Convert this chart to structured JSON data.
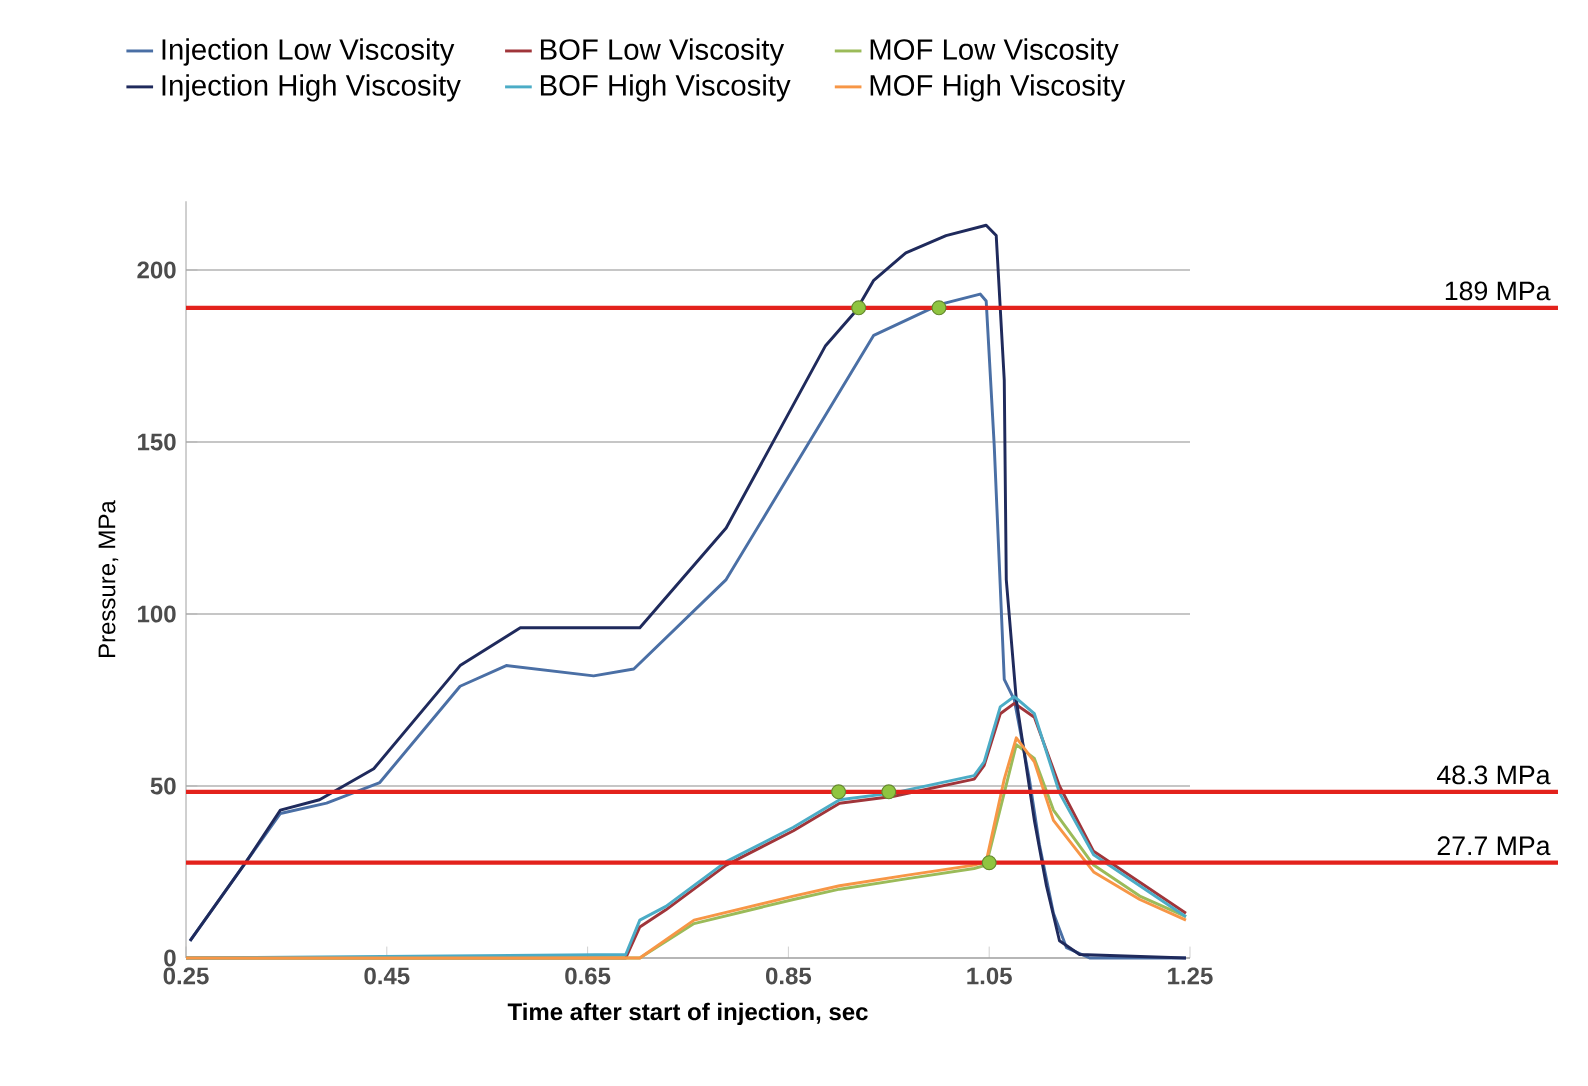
{
  "chart_data": {
    "type": "line",
    "xlabel": "Time after start of injection, sec",
    "ylabel": "Pressure, MPa",
    "xlim": [
      0.25,
      1.25
    ],
    "ylim": [
      0,
      220
    ],
    "xticks": [
      0.25,
      0.45,
      0.65,
      0.85,
      1.05,
      1.25
    ],
    "yticks": [
      0,
      50,
      100,
      150,
      200
    ],
    "grid": "y",
    "legend": "top",
    "series": [
      {
        "name": "Injection Low Viscosity",
        "color": "#4a6fa5",
        "x": [
          0.254,
          0.31,
          0.344,
          0.39,
          0.443,
          0.523,
          0.569,
          0.656,
          0.696,
          0.788,
          0.875,
          0.935,
          1.001,
          1.041,
          1.047,
          1.055,
          1.065,
          1.075,
          1.09,
          1.1,
          1.114,
          1.127,
          1.15,
          1.246
        ],
        "values": [
          5,
          28,
          42,
          45,
          51,
          79,
          85,
          82,
          84,
          110,
          152,
          181,
          190,
          193,
          191,
          149,
          81,
          75,
          52,
          33,
          13,
          3,
          0,
          0
        ]
      },
      {
        "name": "BOF Low Viscosity",
        "color": "#a0353a",
        "x": [
          0.25,
          0.688,
          0.702,
          0.728,
          0.788,
          0.855,
          0.901,
          0.955,
          1.035,
          1.045,
          1.061,
          1.075,
          1.095,
          1.12,
          1.154,
          1.2,
          1.246
        ],
        "values": [
          0,
          0,
          9,
          14,
          27,
          37,
          45,
          47,
          52,
          56,
          71,
          74,
          70,
          50,
          31,
          22,
          13
        ]
      },
      {
        "name": "MOF Low Viscosity",
        "color": "#9bbb59",
        "x": [
          0.25,
          0.702,
          0.756,
          0.855,
          0.901,
          0.967,
          1.035,
          1.047,
          1.065,
          1.077,
          1.095,
          1.114,
          1.154,
          1.2,
          1.246
        ],
        "values": [
          0,
          0,
          10,
          17,
          20,
          23,
          26,
          27,
          48,
          62,
          58,
          43,
          27,
          18,
          12
        ]
      },
      {
        "name": "Injection High Viscosity",
        "color": "#1f2a5c",
        "x": [
          0.254,
          0.31,
          0.344,
          0.383,
          0.437,
          0.523,
          0.583,
          0.702,
          0.788,
          0.887,
          0.917,
          0.935,
          0.967,
          1.007,
          1.047,
          1.057,
          1.065,
          1.067,
          1.077,
          1.095,
          1.107,
          1.12,
          1.14,
          1.246
        ],
        "values": [
          5,
          28,
          43,
          46,
          55,
          85,
          96,
          96,
          125,
          178,
          188,
          197,
          205,
          210,
          213,
          210,
          168,
          110,
          75,
          40,
          21,
          5,
          1,
          0
        ]
      },
      {
        "name": "BOF High Viscosity",
        "color": "#4bacc6",
        "x": [
          0.25,
          0.688,
          0.702,
          0.728,
          0.788,
          0.855,
          0.901,
          0.955,
          1.035,
          1.045,
          1.061,
          1.075,
          1.095,
          1.12,
          1.154,
          1.2,
          1.246
        ],
        "values": [
          0,
          1,
          11,
          15,
          28,
          38,
          46,
          48,
          53,
          57,
          73,
          76,
          71,
          48,
          30,
          21,
          12
        ]
      },
      {
        "name": "MOF High Viscosity",
        "color": "#f79646",
        "x": [
          0.25,
          0.702,
          0.756,
          0.855,
          0.901,
          0.967,
          1.035,
          1.047,
          1.065,
          1.077,
          1.095,
          1.114,
          1.154,
          1.2,
          1.246
        ],
        "values": [
          0,
          0,
          11,
          18,
          21,
          24,
          27,
          28,
          52,
          64,
          57,
          40,
          25,
          17,
          11
        ]
      },
      {
        "type": "scatter",
        "color": "#8fc440",
        "x": [
          0.92,
          1.0,
          0.9,
          0.95,
          1.05
        ],
        "values": [
          189,
          189,
          48.3,
          48.3,
          27.7
        ]
      }
    ],
    "ref_lines": [
      {
        "axis": "y",
        "value": 189,
        "label": "189 MPa",
        "color": "#e3221c"
      },
      {
        "axis": "y",
        "value": 48.3,
        "label": "48.3 MPa",
        "color": "#e3221c"
      },
      {
        "axis": "y",
        "value": 27.7,
        "label": "27.7 MPa",
        "color": "#e3221c"
      }
    ]
  }
}
